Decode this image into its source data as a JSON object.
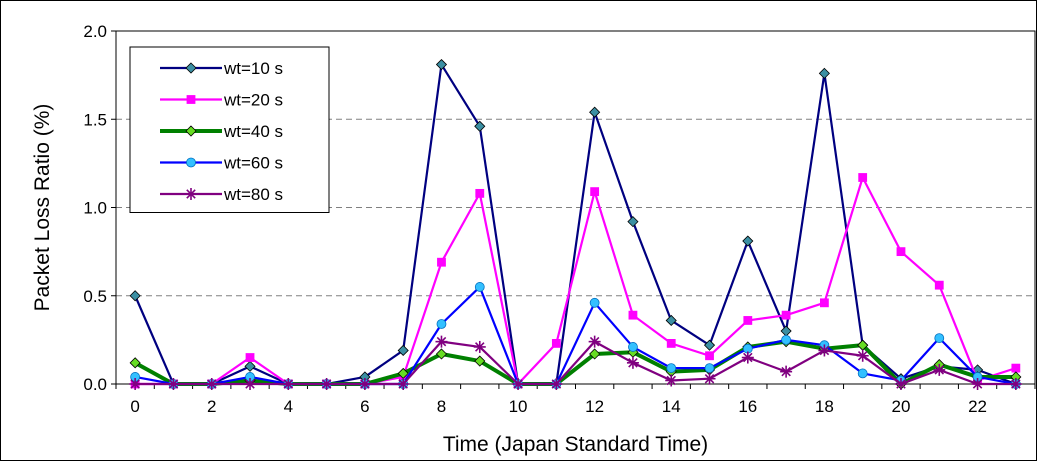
{
  "chart_data": {
    "type": "line",
    "xlabel": "Time (Japan Standard Time)",
    "ylabel": "Packet Loss Ratio (%)",
    "xlim": [
      -0.5,
      23.5
    ],
    "ylim": [
      0,
      2.0
    ],
    "x_ticks": [
      "0",
      "2",
      "4",
      "6",
      "8",
      "10",
      "12",
      "14",
      "16",
      "18",
      "20",
      "22"
    ],
    "y_ticks": [
      "0.0",
      "0.5",
      "1.0",
      "1.5",
      "2.0"
    ],
    "grid": "horizontal dashed",
    "legend_position": "top-left",
    "x": [
      0,
      1,
      2,
      3,
      4,
      5,
      6,
      7,
      8,
      9,
      10,
      11,
      12,
      13,
      14,
      15,
      16,
      17,
      18,
      19,
      20,
      21,
      22,
      23
    ],
    "series": [
      {
        "name": "wt=10 s",
        "color": "#000080",
        "marker": "diamond",
        "values": [
          0.5,
          0.0,
          0.0,
          0.1,
          0.0,
          0.0,
          0.04,
          0.19,
          1.81,
          1.46,
          0.0,
          0.0,
          1.54,
          0.92,
          0.36,
          0.22,
          0.81,
          0.3,
          1.76,
          0.22,
          0.03,
          0.1,
          0.08,
          0.0
        ]
      },
      {
        "name": "wt=20 s",
        "color": "#ff00ff",
        "marker": "square",
        "values": [
          0.0,
          0.0,
          0.0,
          0.15,
          0.0,
          0.0,
          0.0,
          0.04,
          0.69,
          1.08,
          0.0,
          0.23,
          1.09,
          0.39,
          0.23,
          0.16,
          0.36,
          0.39,
          0.46,
          1.17,
          0.75,
          0.56,
          0.02,
          0.09
        ]
      },
      {
        "name": "wt=40 s",
        "color": "#008000",
        "marker": "diamond",
        "values": [
          0.12,
          0.0,
          0.0,
          0.02,
          0.0,
          0.0,
          0.0,
          0.06,
          0.17,
          0.13,
          0.0,
          0.0,
          0.17,
          0.18,
          0.07,
          0.08,
          0.21,
          0.24,
          0.2,
          0.22,
          0.0,
          0.11,
          0.04,
          0.04
        ]
      },
      {
        "name": "wt=60 s",
        "color": "#0000ff",
        "marker": "circle",
        "values": [
          0.04,
          0.0,
          0.0,
          0.04,
          0.0,
          0.0,
          0.0,
          0.0,
          0.34,
          0.55,
          0.0,
          0.0,
          0.46,
          0.21,
          0.09,
          0.09,
          0.2,
          0.25,
          0.22,
          0.06,
          0.02,
          0.26,
          0.04,
          0.0
        ]
      },
      {
        "name": "wt=80 s",
        "color": "#800080",
        "marker": "asterisk",
        "values": [
          0.0,
          0.0,
          0.0,
          0.0,
          0.0,
          0.0,
          0.0,
          0.0,
          0.24,
          0.21,
          0.0,
          0.0,
          0.24,
          0.12,
          0.02,
          0.03,
          0.15,
          0.07,
          0.19,
          0.16,
          0.0,
          0.08,
          0.0,
          0.0
        ]
      }
    ]
  }
}
